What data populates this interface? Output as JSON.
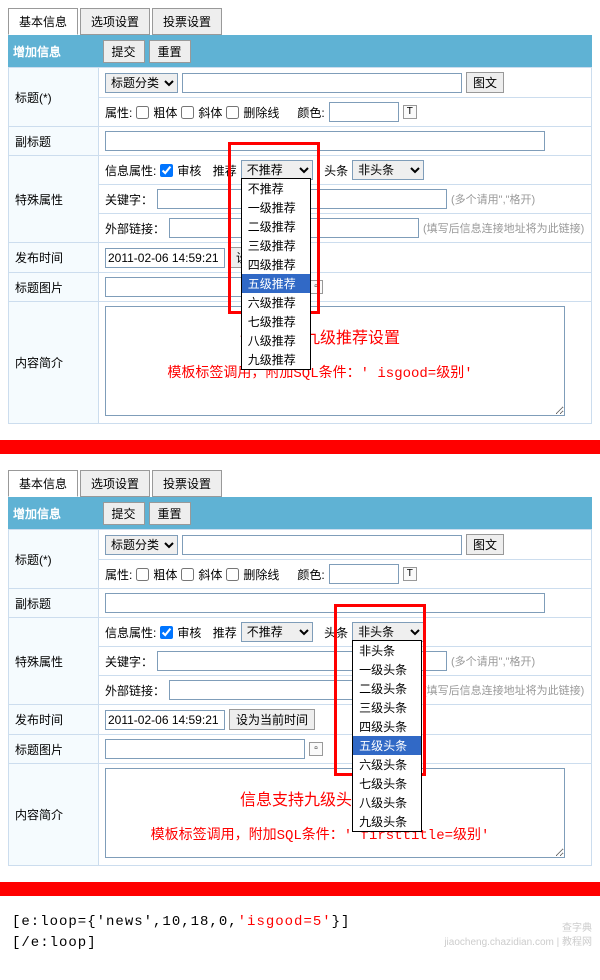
{
  "tabs": [
    "基本信息",
    "选项设置",
    "投票设置"
  ],
  "section_title": "增加信息",
  "buttons": {
    "submit": "提交",
    "reset": "重置",
    "set_now": "设为当前时间",
    "tuwen": "图文"
  },
  "labels": {
    "title": "标题(*)",
    "subtitle": "副标题",
    "special": "特殊属性",
    "pubtime": "发布时间",
    "titlepic": "标题图片",
    "intro": "内容简介",
    "category": "标题分类",
    "attr": "属性:",
    "bold": "粗体",
    "italic": "斜体",
    "strike": "删除线",
    "color": "颜色:",
    "info_attr": "信息属性:",
    "audit": "审核",
    "recommend": "推荐",
    "headline": "头条",
    "keyword": "关键字：",
    "extlink": "外部链接："
  },
  "values": {
    "title_input": "",
    "subtitle_input": "",
    "recommend_sel": "不推荐",
    "headline_sel": "非头条",
    "keyword_input": "",
    "extlink_input": "",
    "pubtime_input": "2011-02-06 14:59:21",
    "titlepic_input": "",
    "intro_input": ""
  },
  "hints": {
    "keyword": "(多个请用\",\"格开)",
    "extlink": "(填写后信息连接地址将为此链接)"
  },
  "dropdowns": {
    "recommend": [
      "不推荐",
      "一级推荐",
      "二级推荐",
      "三级推荐",
      "四级推荐",
      "五级推荐",
      "六级推荐",
      "七级推荐",
      "八级推荐",
      "九级推荐"
    ],
    "recommend_hl": 5,
    "headline": [
      "非头条",
      "一级头条",
      "二级头条",
      "三级头条",
      "四级头条",
      "五级头条",
      "六级头条",
      "七级头条",
      "八级头条",
      "九级头条"
    ],
    "headline_hl": 5
  },
  "annotations": {
    "panel1_line1": "信息支持九级推荐设置",
    "panel1_line2": "模板标签调用，附加SQL条件：' isgood=级别'",
    "panel2_line1": "信息支持九级头条设置",
    "panel2_line2": "模板标签调用，附加SQL条件：' firsttitle=级别'"
  },
  "code": {
    "line1_pre": "[e:loop={'news',10,18,0,",
    "line1_red": "'isgood=5'",
    "line1_post": "}]",
    "line2": "[/e:loop]"
  },
  "watermark1": "查字典",
  "watermark2": "jiaocheng.chazidian.com | 教程网",
  "colors": {
    "header_bg": "#5fb2d4",
    "border": "#cde",
    "red": "#ff0000",
    "dropdown_hl": "#3169c6"
  }
}
